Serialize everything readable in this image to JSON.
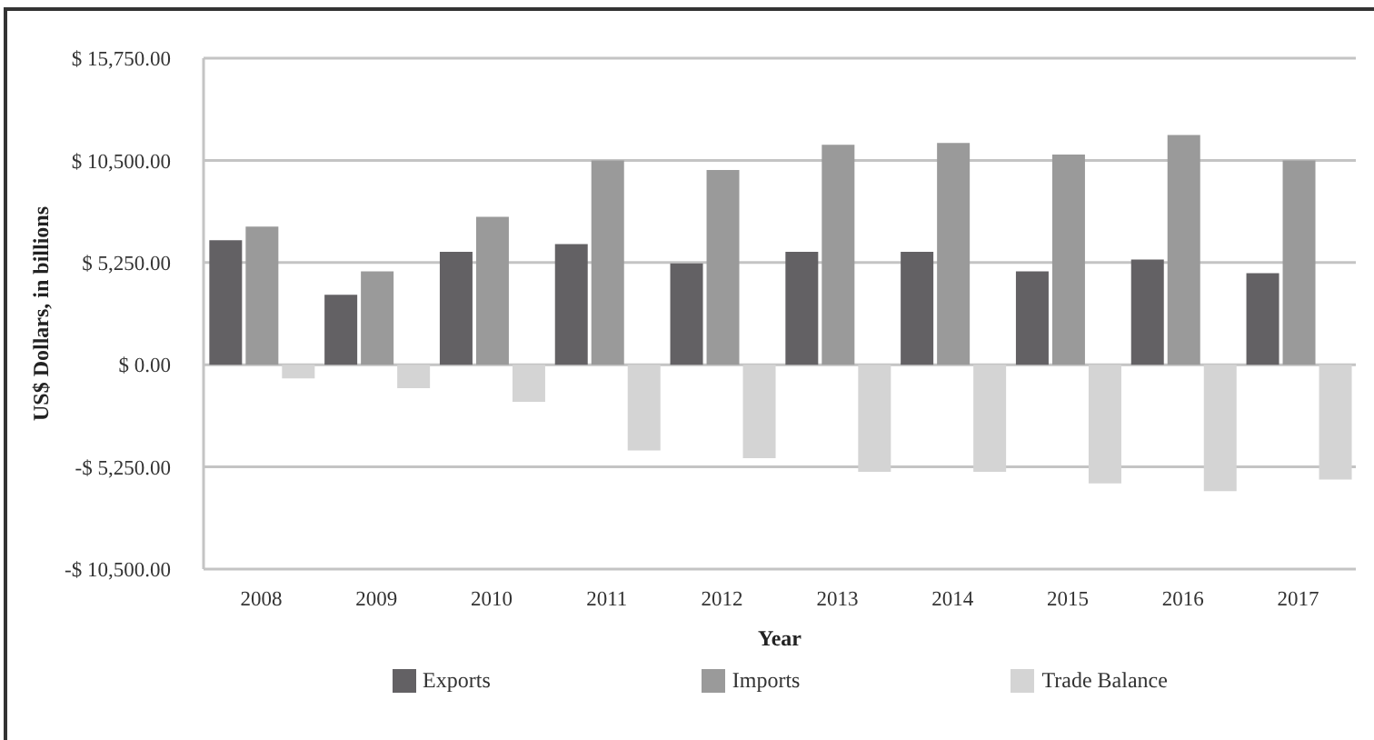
{
  "chart_data": {
    "type": "bar",
    "xlabel": "Year",
    "ylabel": "US$ Dollars, in billions",
    "categories": [
      "2008",
      "2009",
      "2010",
      "2011",
      "2012",
      "2013",
      "2014",
      "2015",
      "2016",
      "2017"
    ],
    "series": [
      {
        "name": "Exports",
        "color": "#636164",
        "values": [
          6400,
          3600,
          5800,
          6200,
          5200,
          5800,
          5800,
          4800,
          5400,
          4700
        ]
      },
      {
        "name": "Imports",
        "color": "#9a9a9a",
        "values": [
          7100,
          4800,
          7600,
          10500,
          10000,
          11300,
          11400,
          10800,
          11800,
          10500
        ]
      },
      {
        "name": "Trade Balance",
        "color": "#d4d4d4",
        "values": [
          -700,
          -1200,
          -1900,
          -4400,
          -4800,
          -5500,
          -5500,
          -6100,
          -6500,
          -5900
        ]
      }
    ],
    "ylim": [
      -10500,
      15750
    ],
    "yticks": [
      {
        "value": -10500,
        "label": "-$ 10,500.00"
      },
      {
        "value": -5250,
        "label": "-$ 5,250.00"
      },
      {
        "value": 0,
        "label": "$ 0.00"
      },
      {
        "value": 5250,
        "label": "$ 5,250.00"
      },
      {
        "value": 10500,
        "label": "$ 10,500.00"
      },
      {
        "value": 15750,
        "label": "$ 15,750.00"
      }
    ],
    "grid": "y",
    "legend": "bottom"
  }
}
